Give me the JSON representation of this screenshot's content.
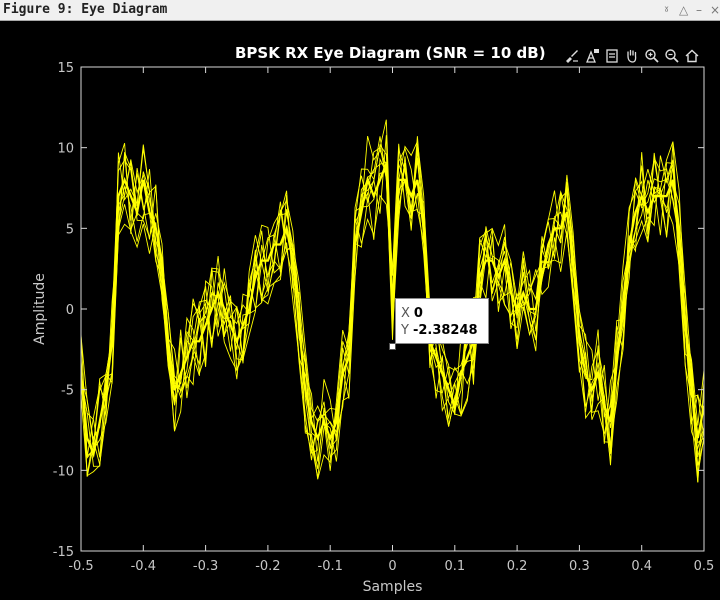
{
  "window": {
    "title": "Figure 9: Eye Diagram",
    "controls": [
      "pin-icon",
      "collapse-icon",
      "minimize-icon",
      "close-icon"
    ]
  },
  "axes_toolbar": {
    "buttons": [
      "brush-icon",
      "datatip-icon",
      "save-icon",
      "pan-icon",
      "zoom-in-icon",
      "zoom-out-icon",
      "home-icon"
    ]
  },
  "colors": {
    "background": "#000000",
    "trace": "#ffff00",
    "axes": "#d9d9d9",
    "tick_label": "#c8c8c8"
  },
  "chart_data": {
    "type": "line",
    "title": "BPSK RX Eye Diagram (SNR = 10 dB)",
    "xlabel": "Samples",
    "ylabel": "Amplitude",
    "xlim": [
      -0.5,
      0.5
    ],
    "ylim": [
      -15,
      15
    ],
    "xticks": [
      -0.5,
      -0.4,
      -0.3,
      -0.2,
      -0.1,
      0,
      0.1,
      0.2,
      0.3,
      0.4,
      0.5
    ],
    "xtick_labels": [
      "-0.5",
      "-0.4",
      "-0.3",
      "-0.2",
      "-0.1",
      "0",
      "0.1",
      "0.2",
      "0.3",
      "0.4",
      "0.5"
    ],
    "yticks": [
      -15,
      -10,
      -5,
      0,
      5,
      10,
      15
    ],
    "ytick_labels": [
      "-15",
      "-10",
      "-5",
      "0",
      "5",
      "10",
      "15"
    ],
    "grid": false,
    "series": [
      {
        "color": "#ffff00",
        "trace_count": 10,
        "x": [
          -0.5,
          -0.49,
          -0.48,
          -0.47,
          -0.46,
          -0.45,
          -0.44,
          -0.43,
          -0.42,
          -0.41,
          -0.4,
          -0.39,
          -0.38,
          -0.37,
          -0.36,
          -0.35,
          -0.34,
          -0.33,
          -0.32,
          -0.31,
          -0.3,
          -0.29,
          -0.28,
          -0.27,
          -0.26,
          -0.25,
          -0.24,
          -0.23,
          -0.22,
          -0.21,
          -0.2,
          -0.19,
          -0.18,
          -0.17,
          -0.16,
          -0.15,
          -0.14,
          -0.13,
          -0.12,
          -0.11,
          -0.1,
          -0.09,
          -0.08,
          -0.07,
          -0.06,
          -0.05,
          -0.04,
          -0.03,
          -0.02,
          -0.01,
          0,
          0.01,
          0.02,
          0.03,
          0.04,
          0.05,
          0.06,
          0.07,
          0.08,
          0.09,
          0.1,
          0.11,
          0.12,
          0.13,
          0.14,
          0.15,
          0.16,
          0.17,
          0.18,
          0.19,
          0.2,
          0.21,
          0.22,
          0.23,
          0.24,
          0.25,
          0.26,
          0.27,
          0.28,
          0.29,
          0.3,
          0.31,
          0.32,
          0.33,
          0.34,
          0.35,
          0.36,
          0.37,
          0.38,
          0.39,
          0.4,
          0.41,
          0.42,
          0.43,
          0.44,
          0.45,
          0.46,
          0.47,
          0.48,
          0.49,
          0.5
        ],
        "y": [
          -4,
          -8,
          -9,
          -7,
          -5,
          -2,
          7,
          8,
          7,
          6,
          8,
          6,
          5,
          3,
          -2,
          -5,
          -4,
          -3,
          -2,
          -2,
          -1,
          0,
          1,
          0,
          -1,
          -2,
          -1,
          0,
          2,
          3,
          3,
          4,
          4,
          5,
          3,
          -1,
          -5,
          -7,
          -8,
          -7,
          -8,
          -7,
          -4,
          -3,
          4,
          6,
          8,
          7,
          8,
          9,
          0,
          8,
          8,
          7,
          8,
          5,
          -2,
          -3,
          -4,
          -5,
          -6,
          -4,
          -3,
          -2,
          2,
          3,
          3,
          2,
          3,
          1,
          0,
          1,
          0,
          0,
          2,
          4,
          5,
          5,
          6,
          3,
          -2,
          -4,
          -5,
          -4,
          -6,
          -7,
          -3,
          0,
          4,
          6,
          7,
          6,
          7,
          7,
          7,
          8,
          5,
          -1,
          -5,
          -8,
          -6
        ],
        "datatip": {
          "x": 0,
          "y": -2.38248
        }
      }
    ]
  },
  "datatip": {
    "x_label": "X",
    "x_value": "0",
    "y_label": "Y",
    "y_value": "-2.38248"
  }
}
